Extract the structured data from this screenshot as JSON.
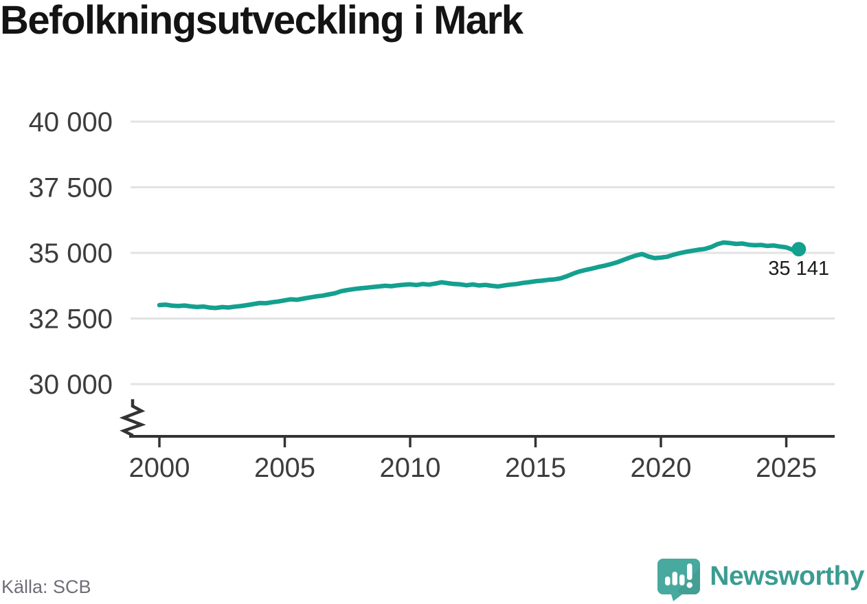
{
  "page": {
    "title": "Befolkningsutveckling i Mark"
  },
  "footer": {
    "source": "Källa: SCB",
    "brand_name": "Newsworthy"
  },
  "colors": {
    "line": "#14a08f",
    "grid": "#e3e3e3",
    "axis": "#333333",
    "tick_text": "#3d3d3d",
    "annotation_text": "#1a1a1a",
    "title_text": "#141414",
    "source_text": "#6e6e78",
    "brand_teal": "#3b9c91",
    "brand_icon_teal": "#48a99e"
  },
  "chart_data": {
    "type": "line",
    "title": "Befolkningsutveckling i Mark",
    "xlabel": "",
    "ylabel": "",
    "grid": "horizontal",
    "legend": "none",
    "axis_break": true,
    "xlim": [
      2000,
      2026.9
    ],
    "ylim": [
      30000,
      40000
    ],
    "x_ticks": [
      2000,
      2005,
      2010,
      2015,
      2020,
      2025
    ],
    "y_ticks": [
      {
        "value": 30000,
        "label": "30 000"
      },
      {
        "value": 32500,
        "label": "32 500"
      },
      {
        "value": 35000,
        "label": "35 000"
      },
      {
        "value": 37500,
        "label": "37 500"
      },
      {
        "value": 40000,
        "label": "40 000"
      }
    ],
    "end_label": "35 141",
    "end_point": {
      "x": 2025.5,
      "value": 35141
    },
    "series": [
      {
        "name": "Befolkningsutveckling i Mark",
        "points": [
          [
            2000.0,
            33010
          ],
          [
            2000.25,
            33025
          ],
          [
            2000.5,
            32990
          ],
          [
            2000.75,
            32975
          ],
          [
            2001.0,
            32995
          ],
          [
            2001.25,
            32960
          ],
          [
            2001.5,
            32940
          ],
          [
            2001.75,
            32955
          ],
          [
            2002.0,
            32915
          ],
          [
            2002.25,
            32900
          ],
          [
            2002.5,
            32935
          ],
          [
            2002.75,
            32920
          ],
          [
            2003.0,
            32950
          ],
          [
            2003.25,
            32975
          ],
          [
            2003.5,
            33010
          ],
          [
            2003.75,
            33050
          ],
          [
            2004.0,
            33090
          ],
          [
            2004.25,
            33080
          ],
          [
            2004.5,
            33120
          ],
          [
            2004.75,
            33150
          ],
          [
            2005.0,
            33190
          ],
          [
            2005.25,
            33230
          ],
          [
            2005.5,
            33215
          ],
          [
            2005.75,
            33260
          ],
          [
            2006.0,
            33300
          ],
          [
            2006.25,
            33340
          ],
          [
            2006.5,
            33370
          ],
          [
            2006.75,
            33415
          ],
          [
            2007.0,
            33460
          ],
          [
            2007.25,
            33540
          ],
          [
            2007.5,
            33585
          ],
          [
            2007.75,
            33620
          ],
          [
            2008.0,
            33650
          ],
          [
            2008.25,
            33670
          ],
          [
            2008.5,
            33700
          ],
          [
            2008.75,
            33720
          ],
          [
            2009.0,
            33745
          ],
          [
            2009.25,
            33730
          ],
          [
            2009.5,
            33765
          ],
          [
            2009.75,
            33785
          ],
          [
            2010.0,
            33800
          ],
          [
            2010.25,
            33775
          ],
          [
            2010.5,
            33815
          ],
          [
            2010.75,
            33790
          ],
          [
            2011.0,
            33830
          ],
          [
            2011.25,
            33880
          ],
          [
            2011.5,
            33845
          ],
          [
            2011.75,
            33815
          ],
          [
            2012.0,
            33800
          ],
          [
            2012.25,
            33765
          ],
          [
            2012.5,
            33795
          ],
          [
            2012.75,
            33760
          ],
          [
            2013.0,
            33780
          ],
          [
            2013.25,
            33745
          ],
          [
            2013.5,
            33720
          ],
          [
            2013.75,
            33760
          ],
          [
            2014.0,
            33790
          ],
          [
            2014.25,
            33815
          ],
          [
            2014.5,
            33855
          ],
          [
            2014.75,
            33885
          ],
          [
            2015.0,
            33920
          ],
          [
            2015.25,
            33940
          ],
          [
            2015.5,
            33970
          ],
          [
            2015.75,
            33990
          ],
          [
            2016.0,
            34030
          ],
          [
            2016.25,
            34110
          ],
          [
            2016.5,
            34210
          ],
          [
            2016.75,
            34290
          ],
          [
            2017.0,
            34350
          ],
          [
            2017.25,
            34400
          ],
          [
            2017.5,
            34460
          ],
          [
            2017.75,
            34510
          ],
          [
            2018.0,
            34570
          ],
          [
            2018.25,
            34640
          ],
          [
            2018.5,
            34730
          ],
          [
            2018.75,
            34820
          ],
          [
            2019.0,
            34900
          ],
          [
            2019.25,
            34955
          ],
          [
            2019.5,
            34860
          ],
          [
            2019.75,
            34800
          ],
          [
            2020.0,
            34820
          ],
          [
            2020.25,
            34850
          ],
          [
            2020.5,
            34930
          ],
          [
            2020.75,
            34990
          ],
          [
            2021.0,
            35040
          ],
          [
            2021.25,
            35080
          ],
          [
            2021.5,
            35120
          ],
          [
            2021.75,
            35150
          ],
          [
            2022.0,
            35220
          ],
          [
            2022.25,
            35330
          ],
          [
            2022.5,
            35395
          ],
          [
            2022.75,
            35375
          ],
          [
            2023.0,
            35340
          ],
          [
            2023.25,
            35355
          ],
          [
            2023.5,
            35310
          ],
          [
            2023.75,
            35290
          ],
          [
            2024.0,
            35300
          ],
          [
            2024.25,
            35265
          ],
          [
            2024.5,
            35280
          ],
          [
            2024.75,
            35240
          ],
          [
            2025.0,
            35210
          ],
          [
            2025.25,
            35120
          ],
          [
            2025.5,
            35141
          ]
        ]
      }
    ]
  }
}
